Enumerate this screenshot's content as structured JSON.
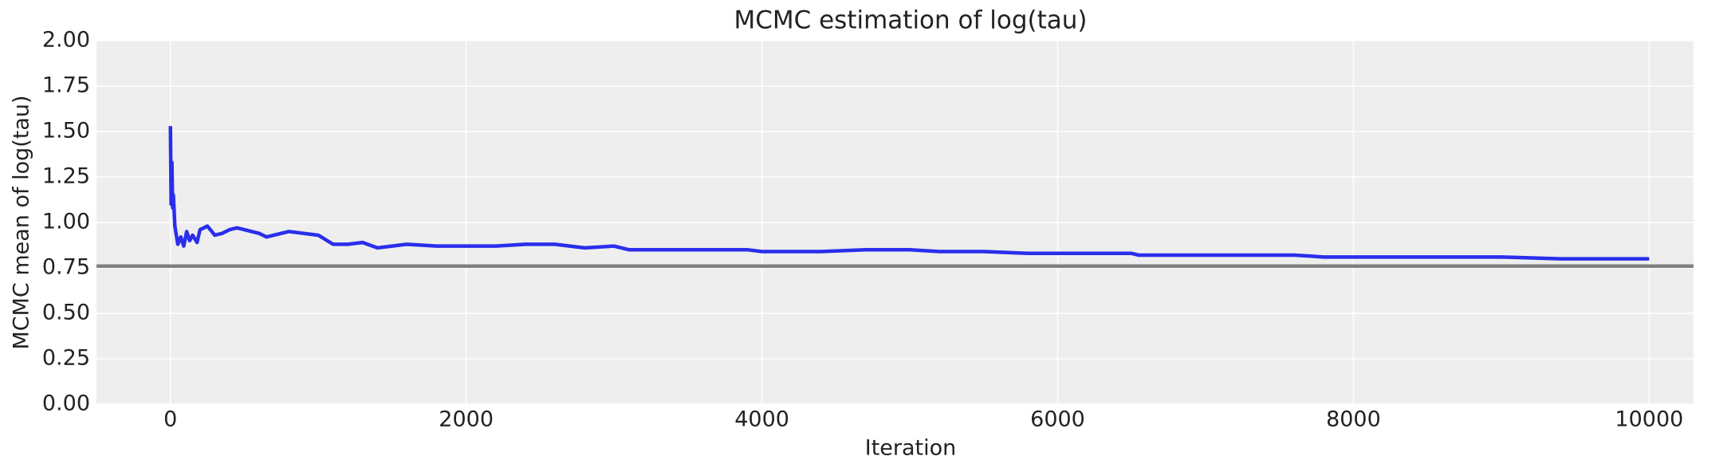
{
  "chart_data": {
    "type": "line",
    "title": "MCMC estimation of log(tau)",
    "xlabel": "Iteration",
    "ylabel": "MCMC mean of log(tau)",
    "x": [
      0,
      5,
      10,
      15,
      20,
      30,
      50,
      70,
      90,
      110,
      130,
      150,
      180,
      200,
      250,
      300,
      350,
      400,
      450,
      500,
      550,
      600,
      650,
      700,
      800,
      900,
      1000,
      1100,
      1200,
      1300,
      1400,
      1500,
      1600,
      1800,
      2000,
      2200,
      2400,
      2600,
      2800,
      3000,
      3100,
      3400,
      3700,
      3900,
      4000,
      4200,
      4400,
      4700,
      5000,
      5200,
      5500,
      5800,
      6000,
      6300,
      6500,
      6550,
      7000,
      7300,
      7600,
      7800,
      8200,
      8600,
      9000,
      9400,
      10000
    ],
    "series": [
      {
        "color": "#2a2eec",
        "values": [
          1.53,
          1.1,
          1.33,
          1.08,
          1.15,
          0.98,
          0.88,
          0.92,
          0.87,
          0.95,
          0.9,
          0.93,
          0.89,
          0.96,
          0.98,
          0.93,
          0.94,
          0.96,
          0.97,
          0.96,
          0.95,
          0.94,
          0.92,
          0.93,
          0.95,
          0.94,
          0.93,
          0.88,
          0.88,
          0.89,
          0.86,
          0.87,
          0.88,
          0.87,
          0.87,
          0.87,
          0.88,
          0.88,
          0.86,
          0.87,
          0.85,
          0.85,
          0.85,
          0.85,
          0.84,
          0.84,
          0.84,
          0.85,
          0.85,
          0.84,
          0.84,
          0.83,
          0.83,
          0.83,
          0.83,
          0.82,
          0.82,
          0.82,
          0.82,
          0.81,
          0.81,
          0.81,
          0.81,
          0.8,
          0.8
        ]
      }
    ],
    "hline": {
      "value": 0.76,
      "color": "#808080"
    },
    "xlim": [
      -500,
      10300
    ],
    "xticks": [
      0,
      2000,
      4000,
      6000,
      8000,
      10000
    ],
    "ylim": [
      0,
      2
    ],
    "yticks": [
      {
        "value": 0,
        "label": "0.00"
      },
      {
        "value": 0.25,
        "label": "0.25"
      },
      {
        "value": 0.5,
        "label": "0.50"
      },
      {
        "value": 0.75,
        "label": "0.75"
      },
      {
        "value": 1,
        "label": "1.00"
      },
      {
        "value": 1.25,
        "label": "1.25"
      },
      {
        "value": 1.5,
        "label": "1.50"
      },
      {
        "value": 1.75,
        "label": "1.75"
      },
      {
        "value": 2,
        "label": "2.00"
      }
    ],
    "grid": true
  }
}
